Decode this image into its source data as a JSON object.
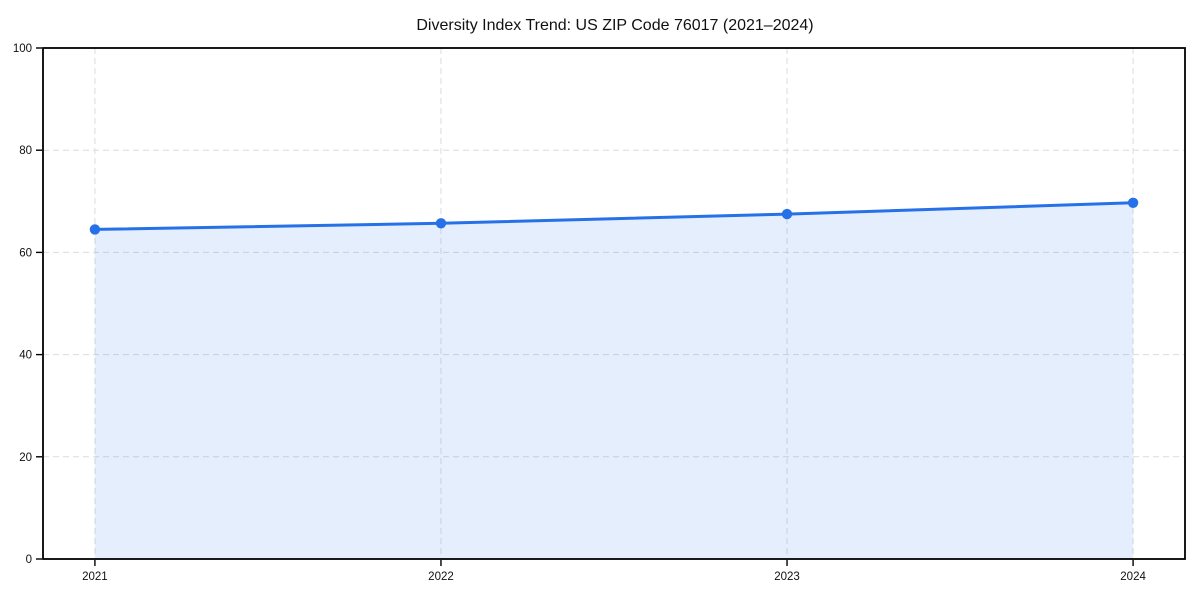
{
  "title": "Diversity Index Trend: US ZIP Code 76017 (2021–2024)",
  "chart_data": {
    "type": "area",
    "title": "Diversity Index Trend: US ZIP Code 76017 (2021–2024)",
    "x": [
      2021,
      2022,
      2023,
      2024
    ],
    "series": [
      {
        "name": "Diversity Index",
        "values": [
          64.5,
          65.7,
          67.5,
          69.7
        ]
      }
    ],
    "xlabel": "",
    "ylabel": "",
    "xlim": [
      2020.85,
      2024.15
    ],
    "ylim": [
      0,
      100
    ],
    "xticks": [
      2021,
      2022,
      2023,
      2024
    ],
    "yticks": [
      0,
      20,
      40,
      60,
      80,
      100
    ],
    "grid": true,
    "grid_style": "dashed",
    "legend_position": "none",
    "marker": "circle",
    "colors": {
      "line": "#2671e8",
      "marker": "#2671e8",
      "area_fill": "#2671e8",
      "area_fill_opacity": 0.12,
      "grid": "#dcdcdc",
      "axis": "#000000",
      "text": "#111111",
      "background": "#ffffff"
    }
  }
}
